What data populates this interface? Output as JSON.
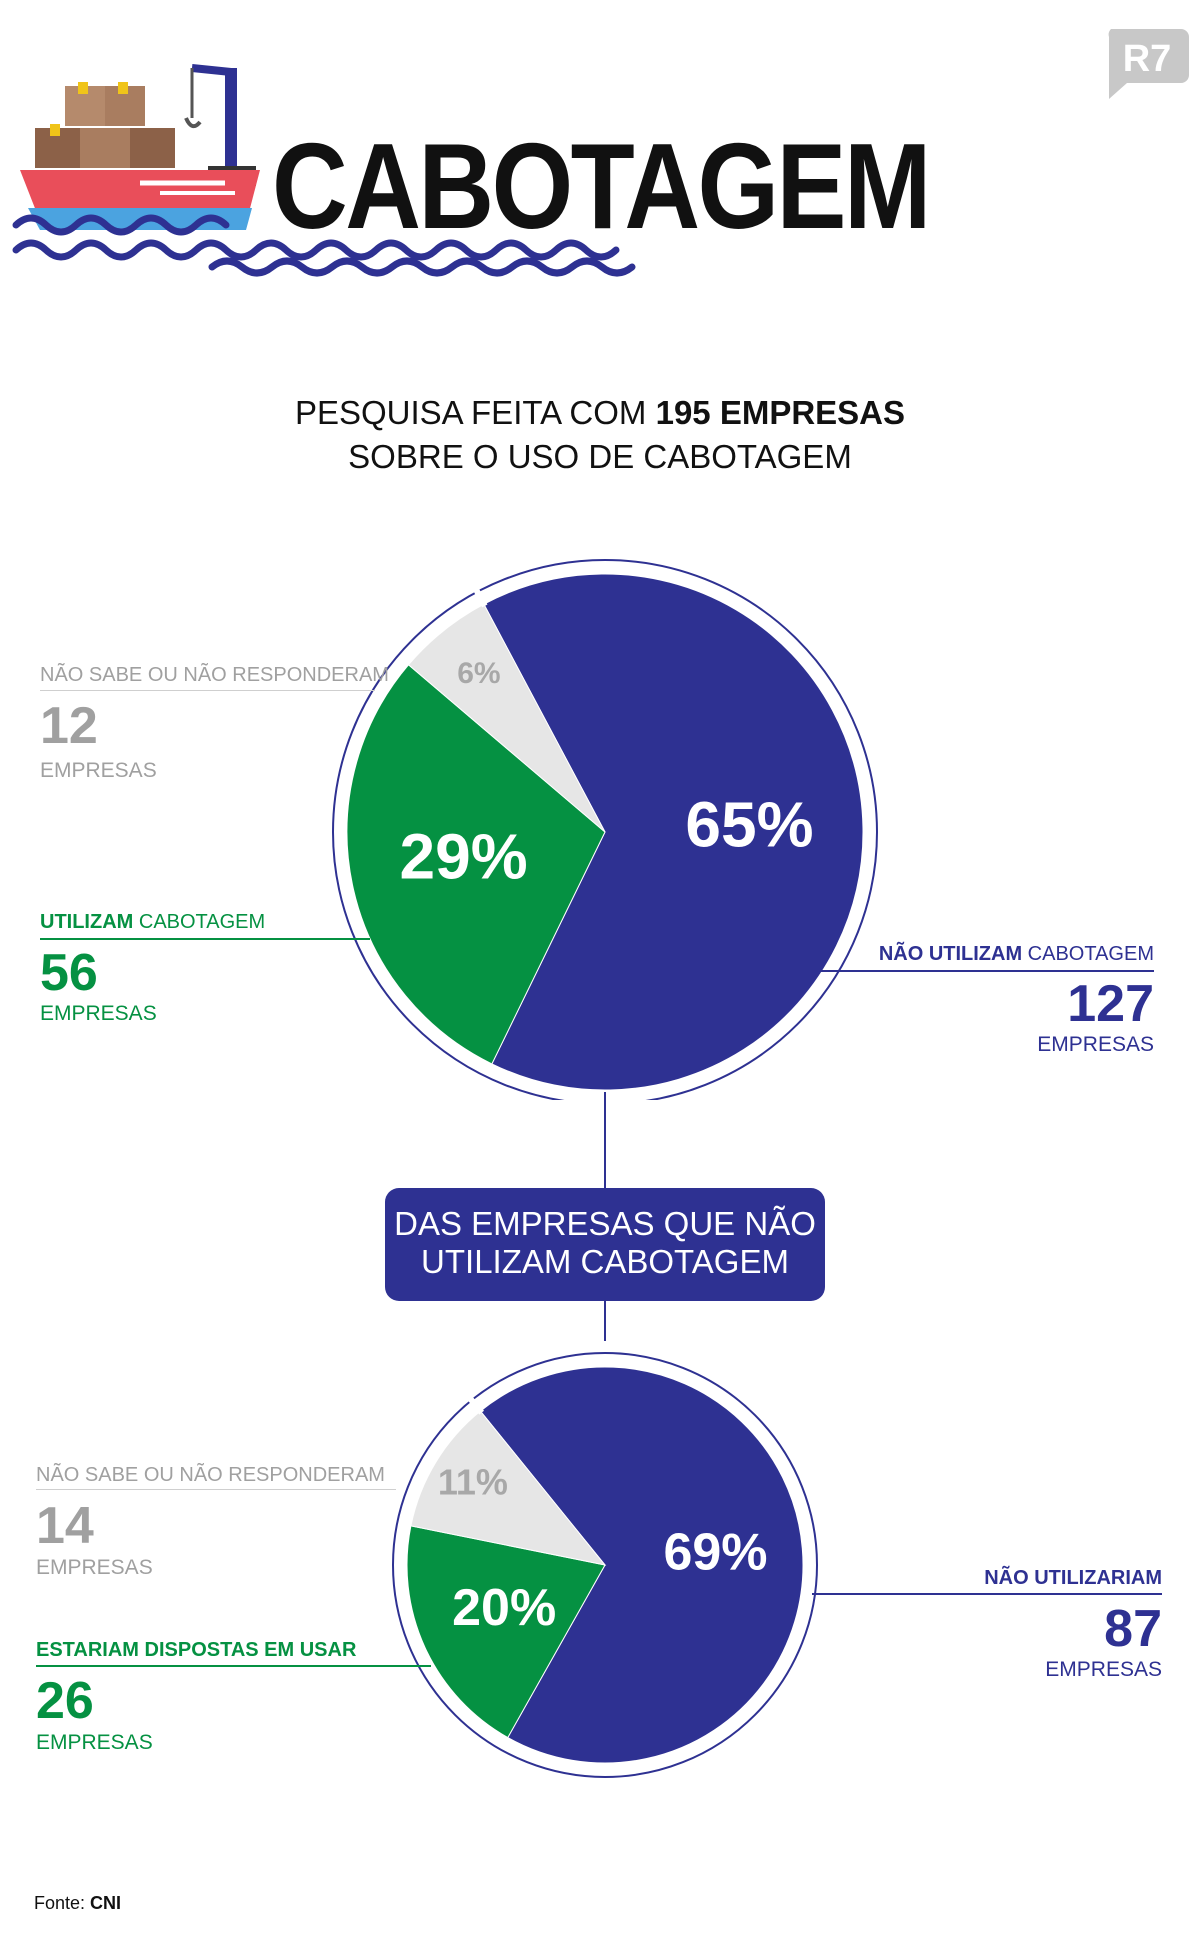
{
  "header": {
    "title": "CABOTAGEM",
    "logo_text": "R7"
  },
  "intro": {
    "line1_prefix": "PESQUISA FEITA COM ",
    "line1_bold": "195 EMPRESAS",
    "line2": "SOBRE O USO DE CABOTAGEM"
  },
  "connector_box": {
    "line1": "DAS EMPRESAS QUE NÃO",
    "line2": "UTILIZAM CABOTAGEM"
  },
  "source": {
    "prefix": "Fonte: ",
    "name": "CNI"
  },
  "colors": {
    "navy": "#2e3192",
    "green": "#059142",
    "grey": "#e6e6e6",
    "grey_text": "#a0a0a0"
  },
  "icons": [
    "cargo-ship-icon",
    "waves-icon",
    "r7-logo-icon"
  ],
  "chart_data": [
    {
      "type": "pie",
      "title": "",
      "slices": [
        {
          "label_bold": "NÃO UTILIZAM",
          "label_rest": " CABOTAGEM",
          "percent": 65,
          "percent_label": "65%",
          "count": "127",
          "unit": "EMPRESAS",
          "color": "#2e3192"
        },
        {
          "label_bold": "UTILIZAM",
          "label_rest": " CABOTAGEM",
          "percent": 29,
          "percent_label": "29%",
          "count": "56",
          "unit": "EMPRESAS",
          "color": "#059142"
        },
        {
          "label_bold": "",
          "label_rest": "NÃO SABE OU NÃO RESPONDERAM",
          "percent": 6,
          "percent_label": "6%",
          "count": "12",
          "unit": "EMPRESAS",
          "color": "#e6e6e6"
        }
      ]
    },
    {
      "type": "pie",
      "title": "",
      "slices": [
        {
          "label_bold": "NÃO UTILIZARIAM",
          "label_rest": "",
          "percent": 69,
          "percent_label": "69%",
          "count": "87",
          "unit": "EMPRESAS",
          "color": "#2e3192"
        },
        {
          "label_bold": "ESTARIAM DISPOSTAS EM USAR",
          "label_rest": "",
          "percent": 20,
          "percent_label": "20%",
          "count": "26",
          "unit": "EMPRESAS",
          "color": "#059142"
        },
        {
          "label_bold": "",
          "label_rest": "NÃO SABE OU NÃO RESPONDERAM",
          "percent": 11,
          "percent_label": "11%",
          "count": "14",
          "unit": "EMPRESAS",
          "color": "#e6e6e6"
        }
      ]
    }
  ]
}
